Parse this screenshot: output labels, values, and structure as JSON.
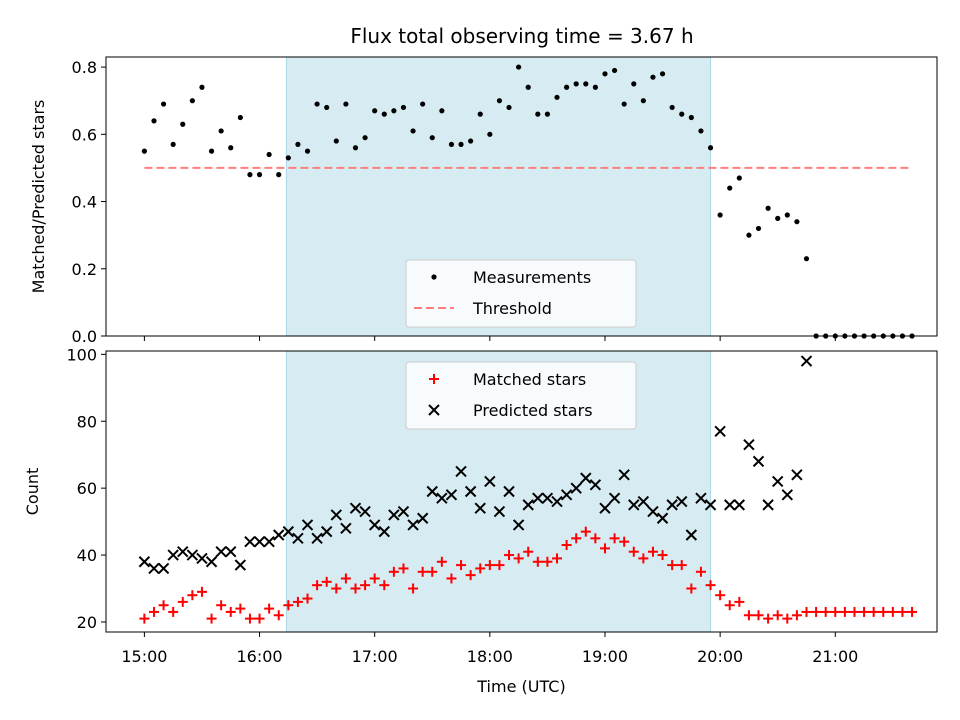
{
  "title": "Flux total observing time = 3.67 h",
  "colors": {
    "shade": "#add8e6",
    "measurement": "#000000",
    "threshold": "#ff7f7f",
    "matched": "#ff0000",
    "predicted": "#000000"
  },
  "chart_data": [
    {
      "type": "scatter",
      "ylabel": "Matched/Predicted stars",
      "xlabel": "",
      "xlim": [
        "14:40",
        "21:53"
      ],
      "ylim": [
        0,
        0.83
      ],
      "yticks": [
        0.0,
        0.2,
        0.4,
        0.6,
        0.8
      ],
      "ytick_labels": [
        "0.0",
        "0.2",
        "0.4",
        "0.6",
        "0.8"
      ],
      "shaded_region": [
        "16:14",
        "19:55"
      ],
      "legend": {
        "position": "lower center",
        "entries": [
          "Measurements",
          "Threshold"
        ]
      },
      "threshold": {
        "name": "Threshold",
        "y": 0.5,
        "x_range": [
          "15:00",
          "21:40"
        ]
      },
      "series": [
        {
          "name": "Measurements",
          "marker": "dot",
          "x": [
            "15:00",
            "15:05",
            "15:10",
            "15:15",
            "15:20",
            "15:25",
            "15:30",
            "15:35",
            "15:40",
            "15:45",
            "15:50",
            "15:55",
            "16:00",
            "16:05",
            "16:10",
            "16:15",
            "16:20",
            "16:25",
            "16:30",
            "16:35",
            "16:40",
            "16:45",
            "16:50",
            "16:55",
            "17:00",
            "17:05",
            "17:10",
            "17:15",
            "17:20",
            "17:25",
            "17:30",
            "17:35",
            "17:40",
            "17:45",
            "17:50",
            "17:55",
            "18:00",
            "18:05",
            "18:10",
            "18:15",
            "18:20",
            "18:25",
            "18:30",
            "18:35",
            "18:40",
            "18:45",
            "18:50",
            "18:55",
            "19:00",
            "19:05",
            "19:10",
            "19:15",
            "19:20",
            "19:25",
            "19:30",
            "19:35",
            "19:40",
            "19:45",
            "19:50",
            "19:55",
            "20:00",
            "20:05",
            "20:10",
            "20:15",
            "20:20",
            "20:25",
            "20:30",
            "20:35",
            "20:40",
            "20:45",
            "20:50",
            "20:55",
            "21:00",
            "21:05",
            "21:10",
            "21:15",
            "21:20",
            "21:25",
            "21:30",
            "21:35",
            "21:40"
          ],
          "y": [
            0.55,
            0.64,
            0.69,
            0.57,
            0.63,
            0.7,
            0.74,
            0.55,
            0.61,
            0.56,
            0.65,
            0.48,
            0.48,
            0.54,
            0.48,
            0.53,
            0.57,
            0.55,
            0.69,
            0.68,
            0.58,
            0.69,
            0.56,
            0.59,
            0.67,
            0.66,
            0.67,
            0.68,
            0.61,
            0.69,
            0.59,
            0.67,
            0.57,
            0.57,
            0.58,
            0.66,
            0.6,
            0.7,
            0.68,
            0.8,
            0.74,
            0.66,
            0.66,
            0.71,
            0.74,
            0.75,
            0.75,
            0.74,
            0.78,
            0.79,
            0.69,
            0.75,
            0.7,
            0.77,
            0.78,
            0.68,
            0.66,
            0.65,
            0.61,
            0.56,
            0.36,
            0.44,
            0.47,
            0.3,
            0.32,
            0.38,
            0.35,
            0.36,
            0.34,
            0.23,
            0,
            0,
            0,
            0,
            0,
            0,
            0,
            0,
            0,
            0,
            0
          ]
        }
      ]
    },
    {
      "type": "scatter",
      "ylabel": "Count",
      "xlabel": "Time (UTC)",
      "xlim": [
        "14:40",
        "21:53"
      ],
      "ylim": [
        17,
        101
      ],
      "yticks": [
        20,
        40,
        60,
        80,
        100
      ],
      "ytick_labels": [
        "20",
        "40",
        "60",
        "80",
        "100"
      ],
      "xticks": [
        "15:00",
        "16:00",
        "17:00",
        "18:00",
        "19:00",
        "20:00",
        "21:00"
      ],
      "xtick_labels": [
        "15:00",
        "16:00",
        "17:00",
        "18:00",
        "19:00",
        "20:00",
        "21:00"
      ],
      "shaded_region": [
        "16:14",
        "19:55"
      ],
      "legend": {
        "position": "upper center",
        "entries": [
          "Matched stars",
          "Predicted stars"
        ]
      },
      "series": [
        {
          "name": "Matched stars",
          "marker": "plus",
          "x": [
            "15:00",
            "15:05",
            "15:10",
            "15:15",
            "15:20",
            "15:25",
            "15:30",
            "15:35",
            "15:40",
            "15:45",
            "15:50",
            "15:55",
            "16:00",
            "16:05",
            "16:10",
            "16:15",
            "16:20",
            "16:25",
            "16:30",
            "16:35",
            "16:40",
            "16:45",
            "16:50",
            "16:55",
            "17:00",
            "17:05",
            "17:10",
            "17:15",
            "17:20",
            "17:25",
            "17:30",
            "17:35",
            "17:40",
            "17:45",
            "17:50",
            "17:55",
            "18:00",
            "18:05",
            "18:10",
            "18:15",
            "18:20",
            "18:25",
            "18:30",
            "18:35",
            "18:40",
            "18:45",
            "18:50",
            "18:55",
            "19:00",
            "19:05",
            "19:10",
            "19:15",
            "19:20",
            "19:25",
            "19:30",
            "19:35",
            "19:40",
            "19:45",
            "19:50",
            "19:55",
            "20:00",
            "20:05",
            "20:10",
            "20:15",
            "20:20",
            "20:25",
            "20:30",
            "20:35",
            "20:40",
            "20:45",
            "20:50",
            "20:55",
            "21:00",
            "21:05",
            "21:10",
            "21:15",
            "21:20",
            "21:25",
            "21:30",
            "21:35",
            "21:40"
          ],
          "y": [
            21,
            23,
            25,
            23,
            26,
            28,
            29,
            21,
            25,
            23,
            24,
            21,
            21,
            24,
            22,
            25,
            26,
            27,
            31,
            32,
            30,
            33,
            30,
            31,
            33,
            31,
            35,
            36,
            30,
            35,
            35,
            38,
            33,
            37,
            34,
            36,
            37,
            37,
            40,
            39,
            41,
            38,
            38,
            39,
            43,
            45,
            47,
            45,
            42,
            45,
            44,
            41,
            39,
            41,
            40,
            37,
            37,
            30,
            35,
            31,
            28,
            25,
            26,
            22,
            22,
            21,
            22,
            21,
            22,
            23,
            23,
            23,
            23,
            23,
            23,
            23,
            23,
            23,
            23,
            23,
            23
          ]
        },
        {
          "name": "Predicted stars",
          "marker": "x",
          "x": [
            "15:00",
            "15:05",
            "15:10",
            "15:15",
            "15:20",
            "15:25",
            "15:30",
            "15:35",
            "15:40",
            "15:45",
            "15:50",
            "15:55",
            "16:00",
            "16:05",
            "16:10",
            "16:15",
            "16:20",
            "16:25",
            "16:30",
            "16:35",
            "16:40",
            "16:45",
            "16:50",
            "16:55",
            "17:00",
            "17:05",
            "17:10",
            "17:15",
            "17:20",
            "17:25",
            "17:30",
            "17:35",
            "17:40",
            "17:45",
            "17:50",
            "17:55",
            "18:00",
            "18:05",
            "18:10",
            "18:15",
            "18:20",
            "18:25",
            "18:30",
            "18:35",
            "18:40",
            "18:45",
            "18:50",
            "18:55",
            "19:00",
            "19:05",
            "19:10",
            "19:15",
            "19:20",
            "19:25",
            "19:30",
            "19:35",
            "19:40",
            "19:45",
            "19:50",
            "19:55",
            "20:00",
            "20:05",
            "20:10",
            "20:15",
            "20:20",
            "20:25",
            "20:30",
            "20:35",
            "20:40",
            "20:45"
          ],
          "y": [
            38,
            36,
            36,
            40,
            41,
            40,
            39,
            38,
            41,
            41,
            37,
            44,
            44,
            44,
            46,
            47,
            45,
            49,
            45,
            47,
            52,
            48,
            54,
            53,
            49,
            47,
            52,
            53,
            49,
            51,
            59,
            57,
            58,
            65,
            59,
            54,
            62,
            53,
            59,
            49,
            55,
            57,
            57,
            56,
            58,
            60,
            63,
            61,
            54,
            57,
            64,
            55,
            56,
            53,
            51,
            55,
            56,
            46,
            57,
            55,
            77,
            55,
            55,
            73,
            68,
            55,
            62,
            58,
            64,
            98
          ]
        }
      ]
    }
  ]
}
